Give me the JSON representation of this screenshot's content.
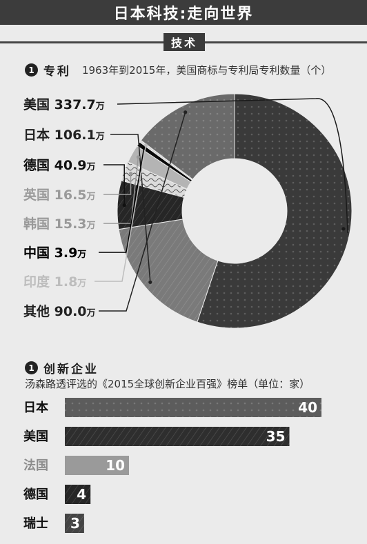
{
  "header": {
    "title": "日本科技:走向世界"
  },
  "section": {
    "tag": "技术"
  },
  "patents": {
    "badge": "1",
    "title": "专利",
    "subtitle": "1963年到2015年，美国商标与专利局专利数量（个）"
  },
  "innovation": {
    "badge": "1",
    "title": "创新企业",
    "subtitle": "汤森路透评选的《2015全球创新企业百强》榜单（单位：家）"
  },
  "chart_data": [
    {
      "type": "pie",
      "title": "1963年到2015年，美国商标与专利局专利数量（个）",
      "unit": "万",
      "categories": [
        "美国",
        "日本",
        "德国",
        "英国",
        "韩国",
        "中国",
        "印度",
        "其他"
      ],
      "values": [
        337.7,
        106.1,
        40.9,
        16.5,
        15.3,
        3.9,
        1.8,
        90.0
      ],
      "value_labels": [
        "337.7",
        "106.1",
        "40.9",
        "16.5",
        "15.3",
        "3.9",
        "1.8",
        "90.0"
      ],
      "colors": [
        "#3a3a3a",
        "#7a7a7a",
        "#262626",
        "#dcdcdc",
        "#b4b4b4",
        "#0a0a0a",
        "#d6d6d6",
        "#6a6a6a"
      ],
      "label_colors": [
        "#1a1a1a",
        "#222222",
        "#111111",
        "#9a9a9a",
        "#999999",
        "#000000",
        "#bdbdbd",
        "#222222"
      ],
      "donut": true
    },
    {
      "type": "bar",
      "orientation": "horizontal",
      "title": "汤森路透评选的《2015全球创新企业百强》榜单（单位：家）",
      "categories": [
        "日本",
        "美国",
        "法国",
        "德国",
        "瑞士"
      ],
      "values": [
        40,
        35,
        10,
        4,
        3
      ],
      "colors": [
        "#5c5c5c",
        "#2e2e2e",
        "#9a9a9a",
        "#262626",
        "#444444"
      ],
      "label_colors": [
        "#111111",
        "#111111",
        "#8c8c8c",
        "#111111",
        "#111111"
      ]
    }
  ]
}
